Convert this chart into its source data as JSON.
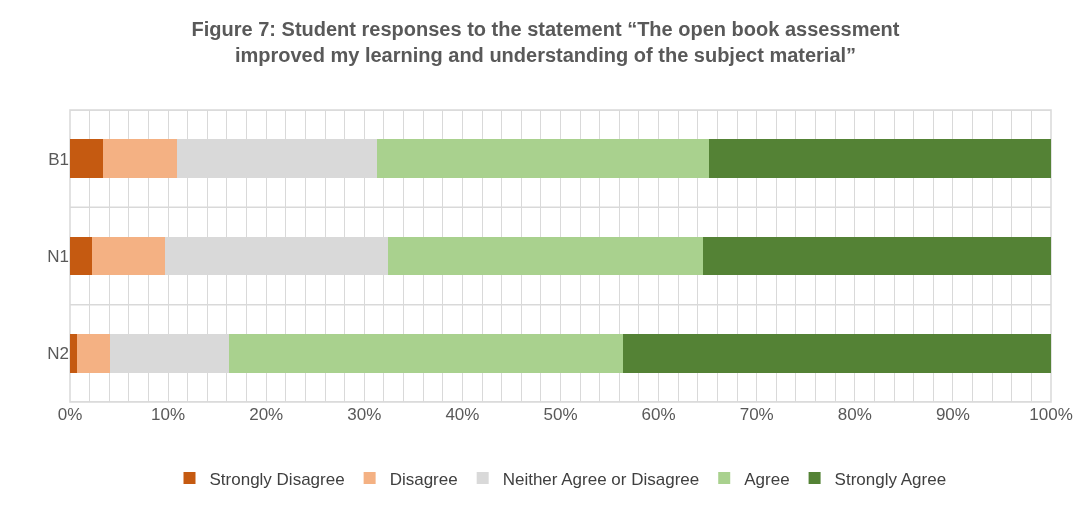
{
  "chart_data": {
    "type": "bar",
    "orientation": "horizontal",
    "stacked": true,
    "title": "Figure 7: Student responses to the statement “The open book assessment improved my learning and understanding of the subject material”",
    "categories": [
      "B1",
      "N1",
      "N2"
    ],
    "series": [
      {
        "name": "Strongly Disagree",
        "color": "#c55a11",
        "values": [
          3.4,
          2.2,
          0.7
        ]
      },
      {
        "name": "Disagree",
        "color": "#f4b183",
        "values": [
          7.5,
          7.5,
          3.4
        ]
      },
      {
        "name": "Neither Agree or Disagree",
        "color": "#d9d9d9",
        "values": [
          20.4,
          22.7,
          12.1
        ]
      },
      {
        "name": "Agree",
        "color": "#a9d18e",
        "values": [
          33.8,
          32.1,
          40.2
        ]
      },
      {
        "name": "Strongly Agree",
        "color": "#548235",
        "values": [
          34.9,
          35.5,
          43.6
        ]
      }
    ],
    "xlim": [
      0,
      100
    ],
    "xticks": [
      {
        "value": 0,
        "label": "0%"
      },
      {
        "value": 2,
        "label": null
      },
      {
        "value": 4,
        "label": null
      },
      {
        "value": 6,
        "label": null
      },
      {
        "value": 8,
        "label": null
      },
      {
        "value": 10,
        "label": "10%"
      },
      {
        "value": 12,
        "label": null
      },
      {
        "value": 14,
        "label": null
      },
      {
        "value": 16,
        "label": null
      },
      {
        "value": 18,
        "label": null
      },
      {
        "value": 20,
        "label": "20%"
      },
      {
        "value": 22,
        "label": null
      },
      {
        "value": 24,
        "label": null
      },
      {
        "value": 26,
        "label": null
      },
      {
        "value": 28,
        "label": null
      },
      {
        "value": 30,
        "label": "30%"
      },
      {
        "value": 32,
        "label": null
      },
      {
        "value": 34,
        "label": null
      },
      {
        "value": 36,
        "label": null
      },
      {
        "value": 38,
        "label": null
      },
      {
        "value": 40,
        "label": "40%"
      },
      {
        "value": 42,
        "label": null
      },
      {
        "value": 44,
        "label": null
      },
      {
        "value": 46,
        "label": null
      },
      {
        "value": 48,
        "label": null
      },
      {
        "value": 50,
        "label": "50%"
      },
      {
        "value": 52,
        "label": null
      },
      {
        "value": 54,
        "label": null
      },
      {
        "value": 56,
        "label": null
      },
      {
        "value": 58,
        "label": null
      },
      {
        "value": 60,
        "label": "60%"
      },
      {
        "value": 62,
        "label": null
      },
      {
        "value": 64,
        "label": null
      },
      {
        "value": 66,
        "label": null
      },
      {
        "value": 68,
        "label": null
      },
      {
        "value": 70,
        "label": "70%"
      },
      {
        "value": 72,
        "label": null
      },
      {
        "value": 74,
        "label": null
      },
      {
        "value": 76,
        "label": null
      },
      {
        "value": 78,
        "label": null
      },
      {
        "value": 80,
        "label": "80%"
      },
      {
        "value": 82,
        "label": null
      },
      {
        "value": 84,
        "label": null
      },
      {
        "value": 86,
        "label": null
      },
      {
        "value": 88,
        "label": null
      },
      {
        "value": 90,
        "label": "90%"
      },
      {
        "value": 92,
        "label": null
      },
      {
        "value": 94,
        "label": null
      },
      {
        "value": 96,
        "label": null
      },
      {
        "value": 98,
        "label": null
      },
      {
        "value": 100,
        "label": "100%"
      }
    ],
    "grid": true,
    "legend": "bottom"
  }
}
